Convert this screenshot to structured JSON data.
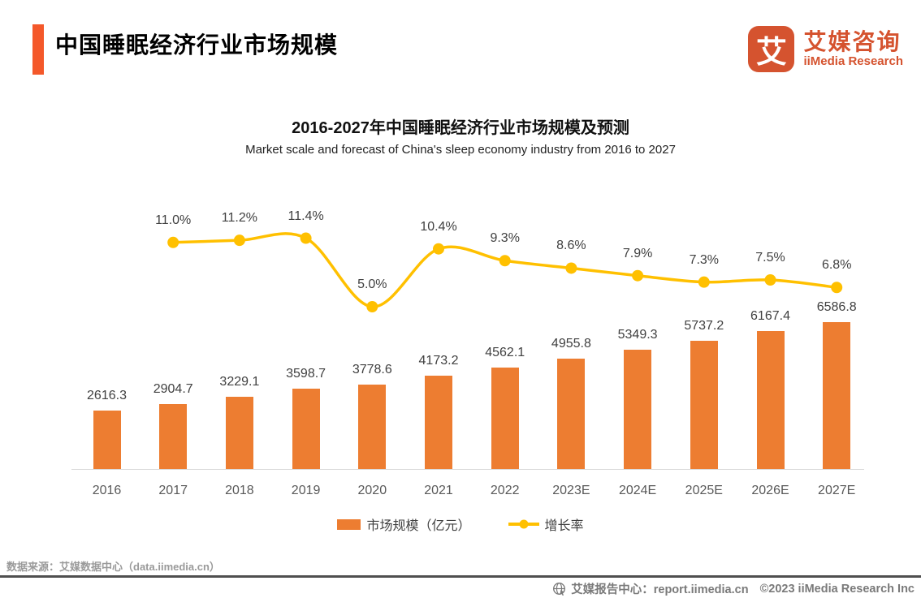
{
  "header": {
    "title": "中国睡眠经济行业市场规模",
    "accent_color": "#F4582A",
    "logo": {
      "icon_char": "艾",
      "name_cn": "艾媒咨询",
      "name_en": "iiMedia Research",
      "color": "#D5532F"
    }
  },
  "chart_data": {
    "type": "bar+line",
    "title": "2016-2027年中国睡眠经济行业市场规模及预测",
    "subtitle": "Market scale and forecast of China's sleep economy industry from 2016 to 2027",
    "categories": [
      "2016",
      "2017",
      "2018",
      "2019",
      "2020",
      "2021",
      "2022",
      "2023E",
      "2024E",
      "2025E",
      "2026E",
      "2027E"
    ],
    "series": [
      {
        "name": "市场规模（亿元）",
        "type": "bar",
        "color": "#ED7D31",
        "values": [
          2616.3,
          2904.7,
          3229.1,
          3598.7,
          3778.6,
          4173.2,
          4562.1,
          4955.8,
          5349.3,
          5737.2,
          6167.4,
          6586.8
        ],
        "value_labels": [
          "2616.3",
          "2904.7",
          "3229.1",
          "3598.7",
          "3778.6",
          "4173.2",
          "4562.1",
          "4955.8",
          "5349.3",
          "5737.2",
          "6167.4",
          "6586.8"
        ]
      },
      {
        "name": "增长率",
        "type": "line",
        "color": "#FFC000",
        "values": [
          null,
          11.0,
          11.2,
          11.4,
          5.0,
          10.4,
          9.3,
          8.6,
          7.9,
          7.3,
          7.5,
          6.8
        ],
        "value_labels": [
          null,
          "11.0%",
          "11.2%",
          "11.4%",
          "5.0%",
          "10.4%",
          "9.3%",
          "8.6%",
          "7.9%",
          "7.3%",
          "7.5%",
          "6.8%"
        ]
      }
    ],
    "legend_position": "bottom",
    "grid": false,
    "y_axis_visible": false,
    "x_axis_color": "#D9D9D9"
  },
  "footer": {
    "source": "数据来源：艾媒数据中心（data.iimedia.cn）",
    "report_center": "艾媒报告中心：report.iimedia.cn",
    "copyright": "©2023  iiMedia Research  Inc"
  }
}
